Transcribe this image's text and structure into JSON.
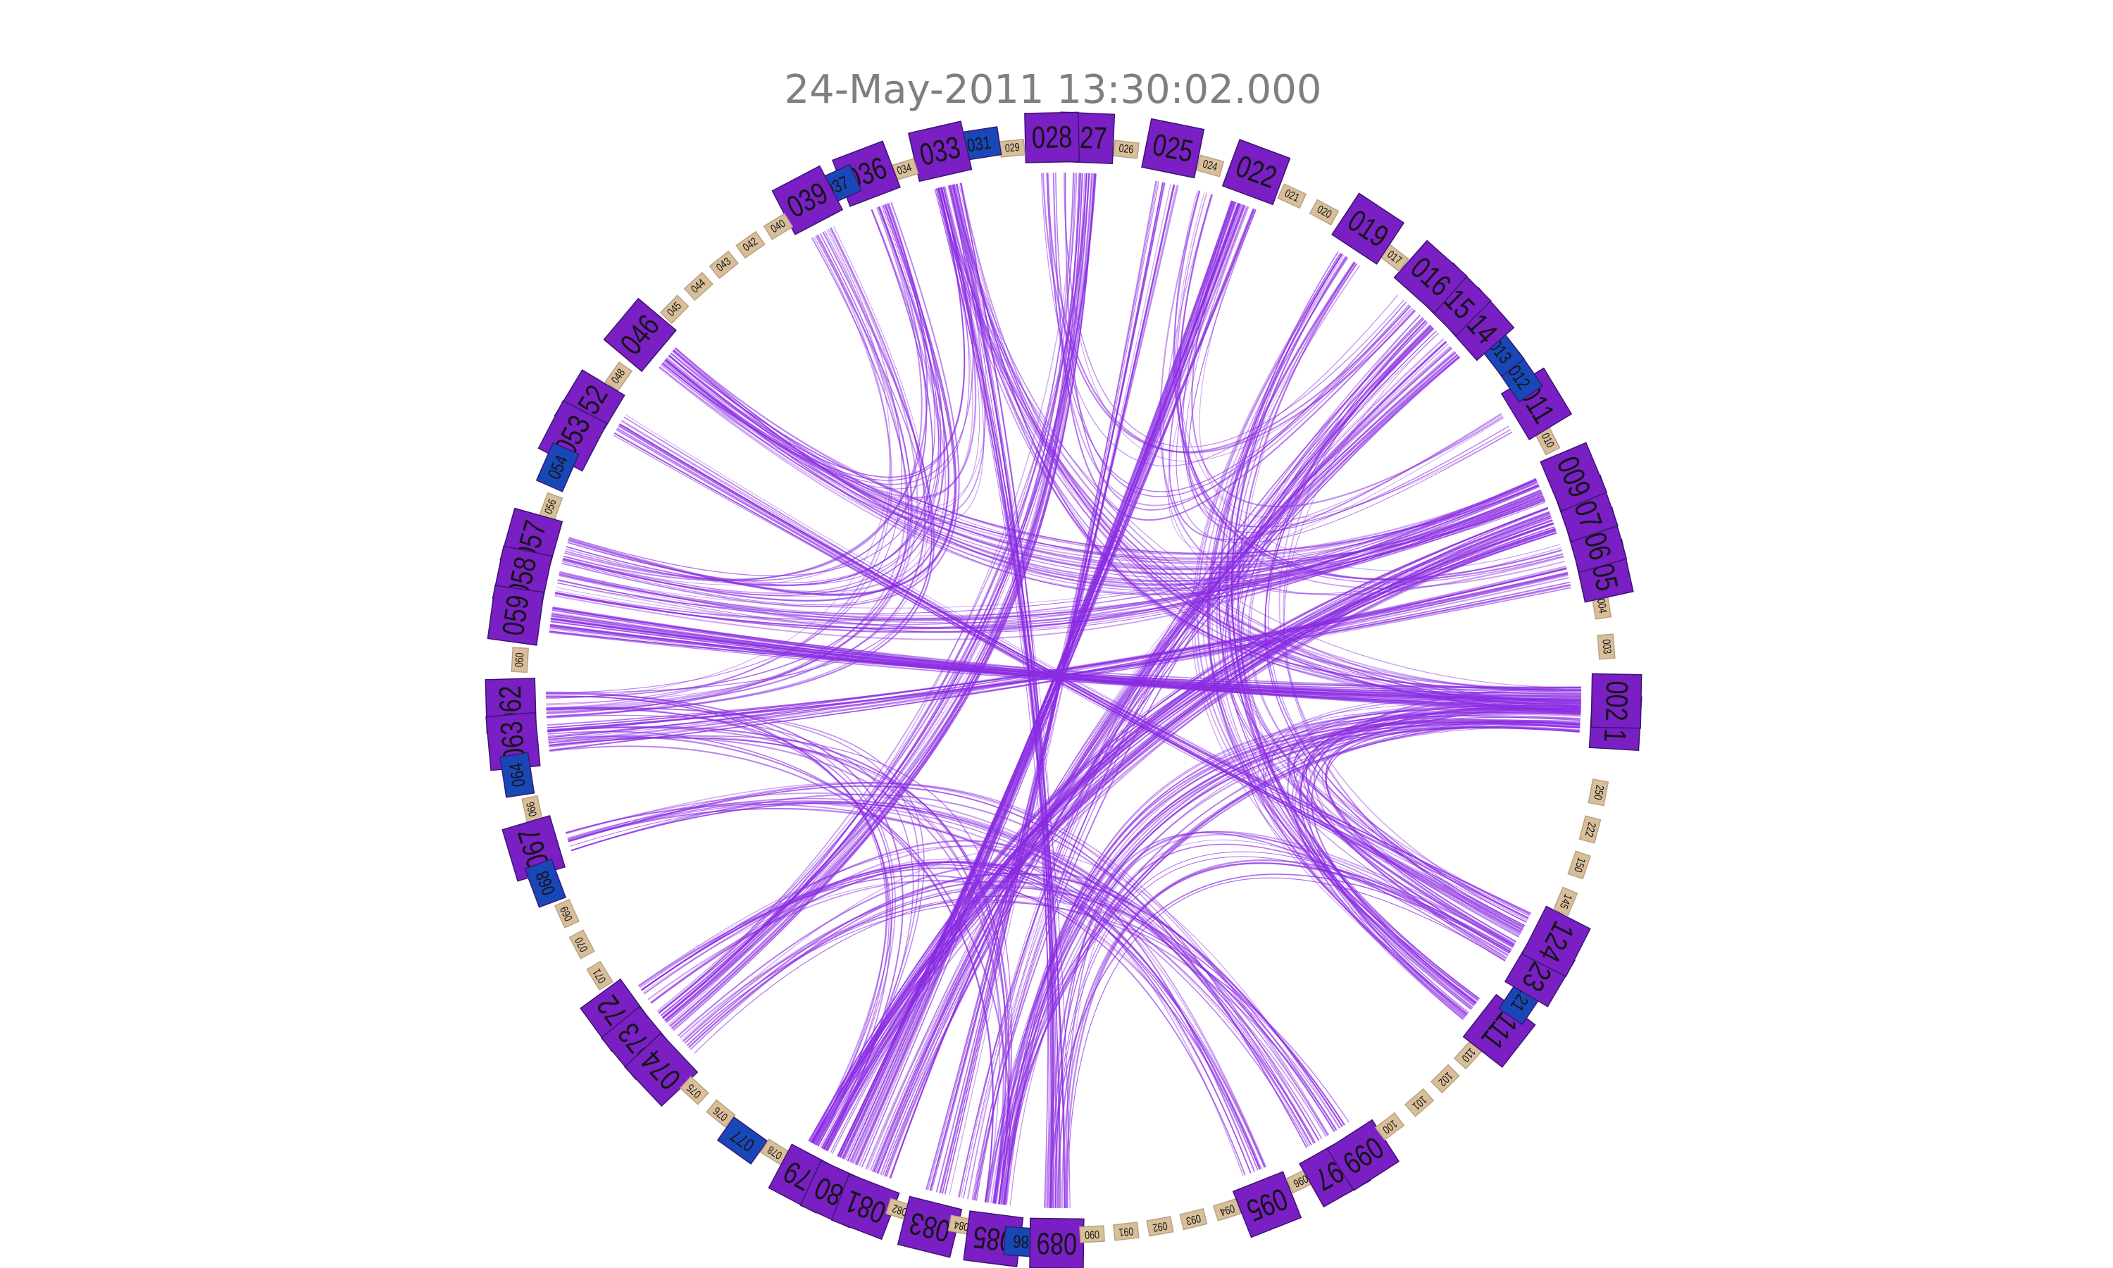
{
  "title": "24-May-2011 13:30:02.000",
  "colors": {
    "edge": "#8a2be2",
    "node_purple": "#7a1fc4",
    "node_blue": "#1847b8",
    "node_tan": "#d8bf9a",
    "title": "#7f7f7f"
  },
  "nodes": [
    {
      "label": "001",
      "kind": "purple",
      "angle": -3.3
    },
    {
      "label": "002",
      "kind": "purple",
      "angle": -1.1
    },
    {
      "label": "003",
      "kind": "tan",
      "angle": 4.6
    },
    {
      "label": "004",
      "kind": "tan",
      "angle": 8.9
    },
    {
      "label": "005",
      "kind": "purple",
      "angle": 12.5
    },
    {
      "label": "006",
      "kind": "purple",
      "angle": 15.8
    },
    {
      "label": "007",
      "kind": "purple",
      "angle": 19.2
    },
    {
      "label": "009",
      "kind": "purple",
      "angle": 22.7
    },
    {
      "label": "010",
      "kind": "tan",
      "angle": 27.3
    },
    {
      "label": "011",
      "kind": "purple",
      "angle": 31.2
    },
    {
      "label": "012",
      "kind": "blue",
      "angle": 34.5
    },
    {
      "label": "013",
      "kind": "blue",
      "angle": 37.8
    },
    {
      "label": "014",
      "kind": "purple",
      "angle": 41.5
    },
    {
      "label": "015",
      "kind": "purple",
      "angle": 45.0
    },
    {
      "label": "016",
      "kind": "purple",
      "angle": 48.4
    },
    {
      "label": "017",
      "kind": "tan",
      "angle": 52.6
    },
    {
      "label": "019",
      "kind": "purple",
      "angle": 56.6
    },
    {
      "label": "020",
      "kind": "tan",
      "angle": 61.4
    },
    {
      "label": "021",
      "kind": "tan",
      "angle": 65.2
    },
    {
      "label": "022",
      "kind": "purple",
      "angle": 69.6
    },
    {
      "label": "024",
      "kind": "tan",
      "angle": 74.4
    },
    {
      "label": "025",
      "kind": "purple",
      "angle": 78.6
    },
    {
      "label": "026",
      "kind": "tan",
      "angle": 83.4
    },
    {
      "label": "027",
      "kind": "purple",
      "angle": 87.6
    },
    {
      "label": "028",
      "kind": "purple",
      "angle": 91.2
    },
    {
      "label": "029",
      "kind": "tan",
      "angle": 95.4
    },
    {
      "label": "031",
      "kind": "blue",
      "angle": 98.8
    },
    {
      "label": "033",
      "kind": "purple",
      "angle": 102.9
    },
    {
      "label": "034",
      "kind": "tan",
      "angle": 107.0
    },
    {
      "label": "036",
      "kind": "purple",
      "angle": 110.9
    },
    {
      "label": "037",
      "kind": "blue",
      "angle": 114.2
    },
    {
      "label": "039",
      "kind": "purple",
      "angle": 117.6
    },
    {
      "label": "040",
      "kind": "tan",
      "angle": 121.6
    },
    {
      "label": "042",
      "kind": "tan",
      "angle": 125.1
    },
    {
      "label": "043",
      "kind": "tan",
      "angle": 128.6
    },
    {
      "label": "044",
      "kind": "tan",
      "angle": 132.1
    },
    {
      "label": "045",
      "kind": "tan",
      "angle": 135.6
    },
    {
      "label": "046",
      "kind": "purple",
      "angle": 140.0
    },
    {
      "label": "048",
      "kind": "tan",
      "angle": 144.8
    },
    {
      "label": "052",
      "kind": "purple",
      "angle": 149.0
    },
    {
      "label": "053",
      "kind": "purple",
      "angle": 152.6
    },
    {
      "label": "054",
      "kind": "blue",
      "angle": 156.2
    },
    {
      "label": "056",
      "kind": "tan",
      "angle": 160.3
    },
    {
      "label": "057",
      "kind": "purple",
      "angle": 164.3
    },
    {
      "label": "058",
      "kind": "purple",
      "angle": 168.2
    },
    {
      "label": "059",
      "kind": "purple",
      "angle": 172.2
    },
    {
      "label": "060",
      "kind": "tan",
      "angle": 176.8
    },
    {
      "label": "062",
      "kind": "purple",
      "angle": 181.6
    },
    {
      "label": "063",
      "kind": "purple",
      "angle": 185.3
    },
    {
      "label": "064",
      "kind": "blue",
      "angle": 188.8
    },
    {
      "label": "066",
      "kind": "tan",
      "angle": 192.6
    },
    {
      "label": "067",
      "kind": "purple",
      "angle": 196.6
    },
    {
      "label": "068",
      "kind": "blue",
      "angle": 200.4
    },
    {
      "label": "069",
      "kind": "tan",
      "angle": 204.2
    },
    {
      "label": "070",
      "kind": "tan",
      "angle": 207.8
    },
    {
      "label": "071",
      "kind": "tan",
      "angle": 211.6
    },
    {
      "label": "072",
      "kind": "purple",
      "angle": 216.0
    },
    {
      "label": "073",
      "kind": "purple",
      "angle": 219.6
    },
    {
      "label": "074",
      "kind": "purple",
      "angle": 223.3
    },
    {
      "label": "075",
      "kind": "tan",
      "angle": 227.3
    },
    {
      "label": "076",
      "kind": "tan",
      "angle": 231.0
    },
    {
      "label": "077",
      "kind": "blue",
      "angle": 234.5
    },
    {
      "label": "078",
      "kind": "tan",
      "angle": 238.0
    },
    {
      "label": "079",
      "kind": "purple",
      "angle": 242.0
    },
    {
      "label": "080",
      "kind": "purple",
      "angle": 245.6
    },
    {
      "label": "081",
      "kind": "purple",
      "angle": 249.0
    },
    {
      "label": "082",
      "kind": "tan",
      "angle": 252.5
    },
    {
      "label": "083",
      "kind": "purple",
      "angle": 256.0
    },
    {
      "label": "084",
      "kind": "tan",
      "angle": 259.2
    },
    {
      "label": "085",
      "kind": "purple",
      "angle": 262.7
    },
    {
      "label": "086",
      "kind": "blue",
      "angle": 266.0
    },
    {
      "label": "089",
      "kind": "purple",
      "angle": 269.3
    },
    {
      "label": "090",
      "kind": "tan",
      "angle": 273.0
    },
    {
      "label": "091",
      "kind": "tan",
      "angle": 276.6
    },
    {
      "label": "092",
      "kind": "tan",
      "angle": 280.2
    },
    {
      "label": "093",
      "kind": "tan",
      "angle": 283.8
    },
    {
      "label": "094",
      "kind": "tan",
      "angle": 287.5
    },
    {
      "label": "095",
      "kind": "purple",
      "angle": 291.6
    },
    {
      "label": "096",
      "kind": "tan",
      "angle": 295.8
    },
    {
      "label": "097",
      "kind": "purple",
      "angle": 299.4
    },
    {
      "label": "099",
      "kind": "purple",
      "angle": 302.8
    },
    {
      "label": "100",
      "kind": "tan",
      "angle": 306.8
    },
    {
      "label": "101",
      "kind": "tan",
      "angle": 310.8
    },
    {
      "label": "102",
      "kind": "tan",
      "angle": 314.5
    },
    {
      "label": "110",
      "kind": "tan",
      "angle": 318.0
    },
    {
      "label": "111",
      "kind": "purple",
      "angle": 322.0
    },
    {
      "label": "121",
      "kind": "blue",
      "angle": 326.0
    },
    {
      "label": "123",
      "kind": "purple",
      "angle": 329.5
    },
    {
      "label": "124",
      "kind": "purple",
      "angle": 333.0
    },
    {
      "label": "145",
      "kind": "tan",
      "angle": 337.2
    },
    {
      "label": "150",
      "kind": "tan",
      "angle": 341.3
    },
    {
      "label": "222",
      "kind": "tan",
      "angle": 345.2
    },
    {
      "label": "250",
      "kind": "tan",
      "angle": 349.2
    }
  ],
  "edge_bundles": [
    {
      "from": "002",
      "to": "059",
      "count": 34
    },
    {
      "from": "001",
      "to": "085",
      "count": 30
    },
    {
      "from": "002",
      "to": "033",
      "count": 22
    },
    {
      "from": "007",
      "to": "079",
      "count": 36
    },
    {
      "from": "009",
      "to": "046",
      "count": 24
    },
    {
      "from": "005",
      "to": "063",
      "count": 18
    },
    {
      "from": "022",
      "to": "080",
      "count": 30
    },
    {
      "from": "019",
      "to": "111",
      "count": 20
    },
    {
      "from": "025",
      "to": "083",
      "count": 14
    },
    {
      "from": "015",
      "to": "124",
      "count": 16
    },
    {
      "from": "027",
      "to": "073",
      "count": 26
    },
    {
      "from": "036",
      "to": "057",
      "count": 18
    },
    {
      "from": "033",
      "to": "089",
      "count": 20
    },
    {
      "from": "039",
      "to": "062",
      "count": 14
    },
    {
      "from": "028",
      "to": "016",
      "count": 10
    },
    {
      "from": "014",
      "to": "081",
      "count": 24
    },
    {
      "from": "015",
      "to": "084",
      "count": 12
    },
    {
      "from": "063",
      "to": "085",
      "count": 10
    },
    {
      "from": "058",
      "to": "009",
      "count": 18
    },
    {
      "from": "052",
      "to": "124",
      "count": 16
    },
    {
      "from": "067",
      "to": "097",
      "count": 16
    },
    {
      "from": "072",
      "to": "095",
      "count": 14
    },
    {
      "from": "074",
      "to": "099",
      "count": 12
    },
    {
      "from": "089",
      "to": "123",
      "count": 14
    },
    {
      "from": "002",
      "to": "111",
      "count": 14
    },
    {
      "from": "011",
      "to": "022",
      "count": 8
    },
    {
      "from": "046",
      "to": "033",
      "count": 10
    },
    {
      "from": "006",
      "to": "024",
      "count": 8
    },
    {
      "from": "062",
      "to": "079",
      "count": 10
    },
    {
      "from": "001",
      "to": "123",
      "count": 12
    }
  ]
}
